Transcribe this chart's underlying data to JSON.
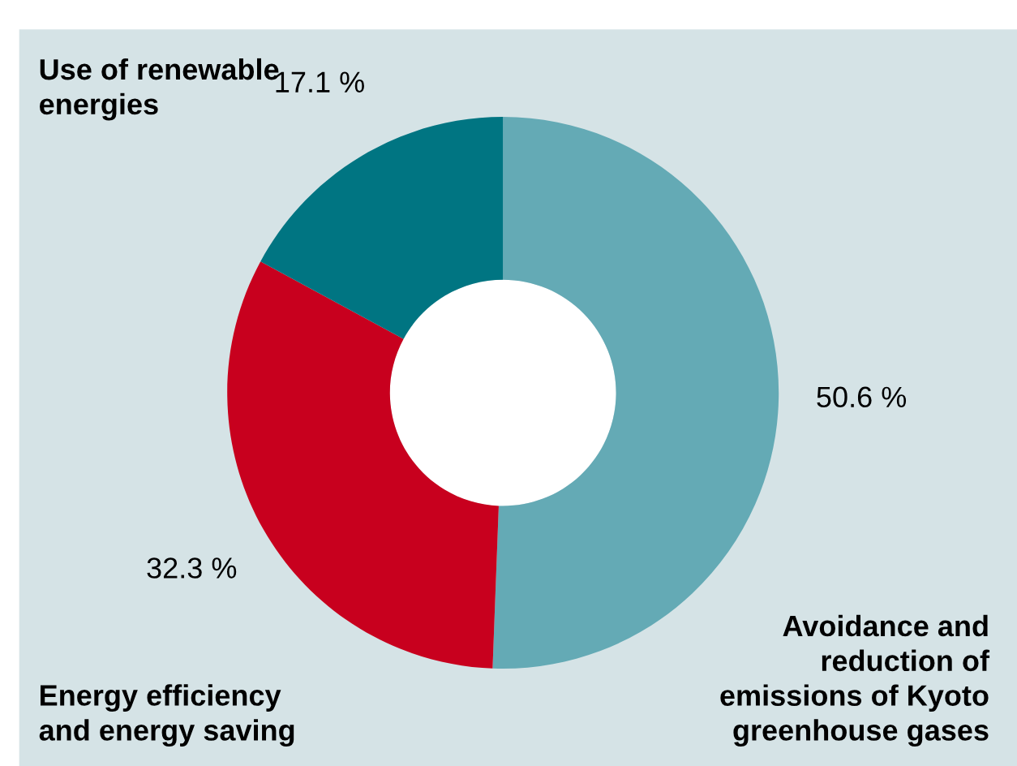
{
  "chart_data": {
    "type": "donut",
    "categories": [
      "Avoidance and\nreduction of\nemissions of Kyoto\ngreenhouse gases",
      "Energy efficiency\nand energy saving",
      "Use of renewable\nenergies"
    ],
    "values": [
      50.6,
      32.3,
      17.1
    ],
    "colors": [
      "#64aab5",
      "#c8001e",
      "#007582"
    ],
    "value_labels": [
      "50.6 %",
      "32.3 %",
      "17.1 %"
    ],
    "legend": false
  }
}
